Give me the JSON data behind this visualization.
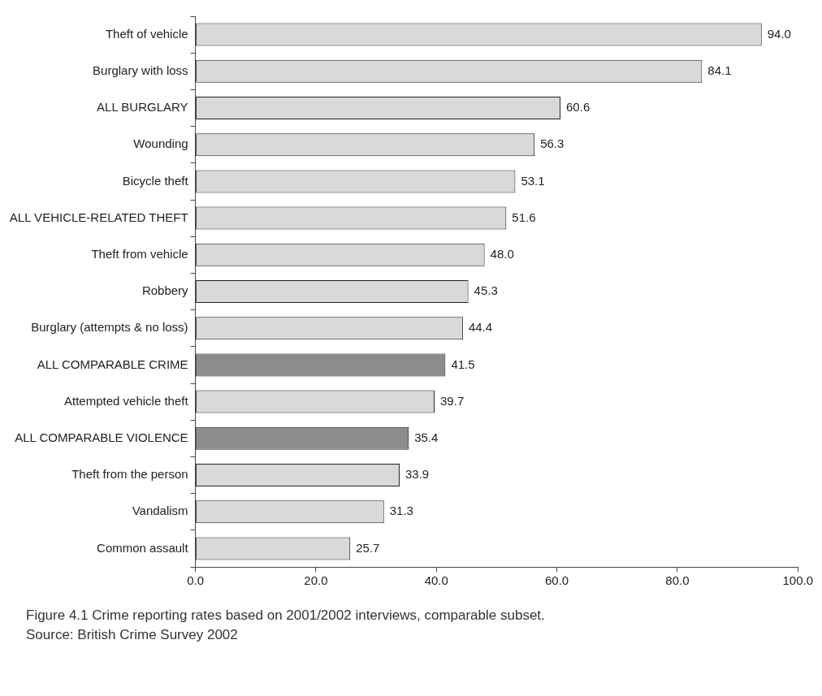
{
  "chart_data": {
    "type": "bar",
    "orientation": "horizontal",
    "title": "Figure 4.1 Crime reporting rates based on 2001/2002 interviews, comparable subset.",
    "annotations": [
      "Source: British Crime Survey 2002"
    ],
    "categories": [
      "Theft of vehicle",
      "Burglary with loss",
      "ALL BURGLARY",
      "Wounding",
      "Bicycle theft",
      "ALL VEHICLE-RELATED THEFT",
      "Theft from vehicle",
      "Robbery",
      "Burglary (attempts & no loss)",
      "ALL COMPARABLE CRIME",
      "Attempted vehicle theft",
      "ALL COMPARABLE VIOLENCE",
      "Theft from the person",
      "Vandalism",
      "Common assault"
    ],
    "values": [
      94.0,
      84.1,
      60.6,
      56.3,
      53.1,
      51.6,
      48.0,
      45.3,
      44.4,
      41.5,
      39.7,
      35.4,
      33.9,
      31.3,
      25.7
    ],
    "value_labels": [
      "94.0",
      "84.1",
      "60.6",
      "56.3",
      "53.1",
      "51.6",
      "48.0",
      "45.3",
      "44.4",
      "41.5",
      "39.7",
      "35.4",
      "33.9",
      "31.3",
      "25.7"
    ],
    "colors": [
      "#d9d9d9",
      "#d9d9d9",
      "#d9d9d9",
      "#d9d9d9",
      "#d9d9d9",
      "#d9d9d9",
      "#d9d9d9",
      "#d9d9d9",
      "#d9d9d9",
      "#8c8c8c",
      "#d9d9d9",
      "#8c8c8c",
      "#d9d9d9",
      "#d9d9d9",
      "#d9d9d9"
    ],
    "xlim": [
      0,
      100
    ],
    "xticks": [
      {
        "value": 0,
        "label": "0.0"
      },
      {
        "value": 20,
        "label": "20.0"
      },
      {
        "value": 40,
        "label": "40.0"
      },
      {
        "value": 60,
        "label": "60.0"
      },
      {
        "value": 80,
        "label": "80.0"
      },
      {
        "value": 100,
        "label": "100.0"
      }
    ],
    "grid": false,
    "legend": false
  }
}
